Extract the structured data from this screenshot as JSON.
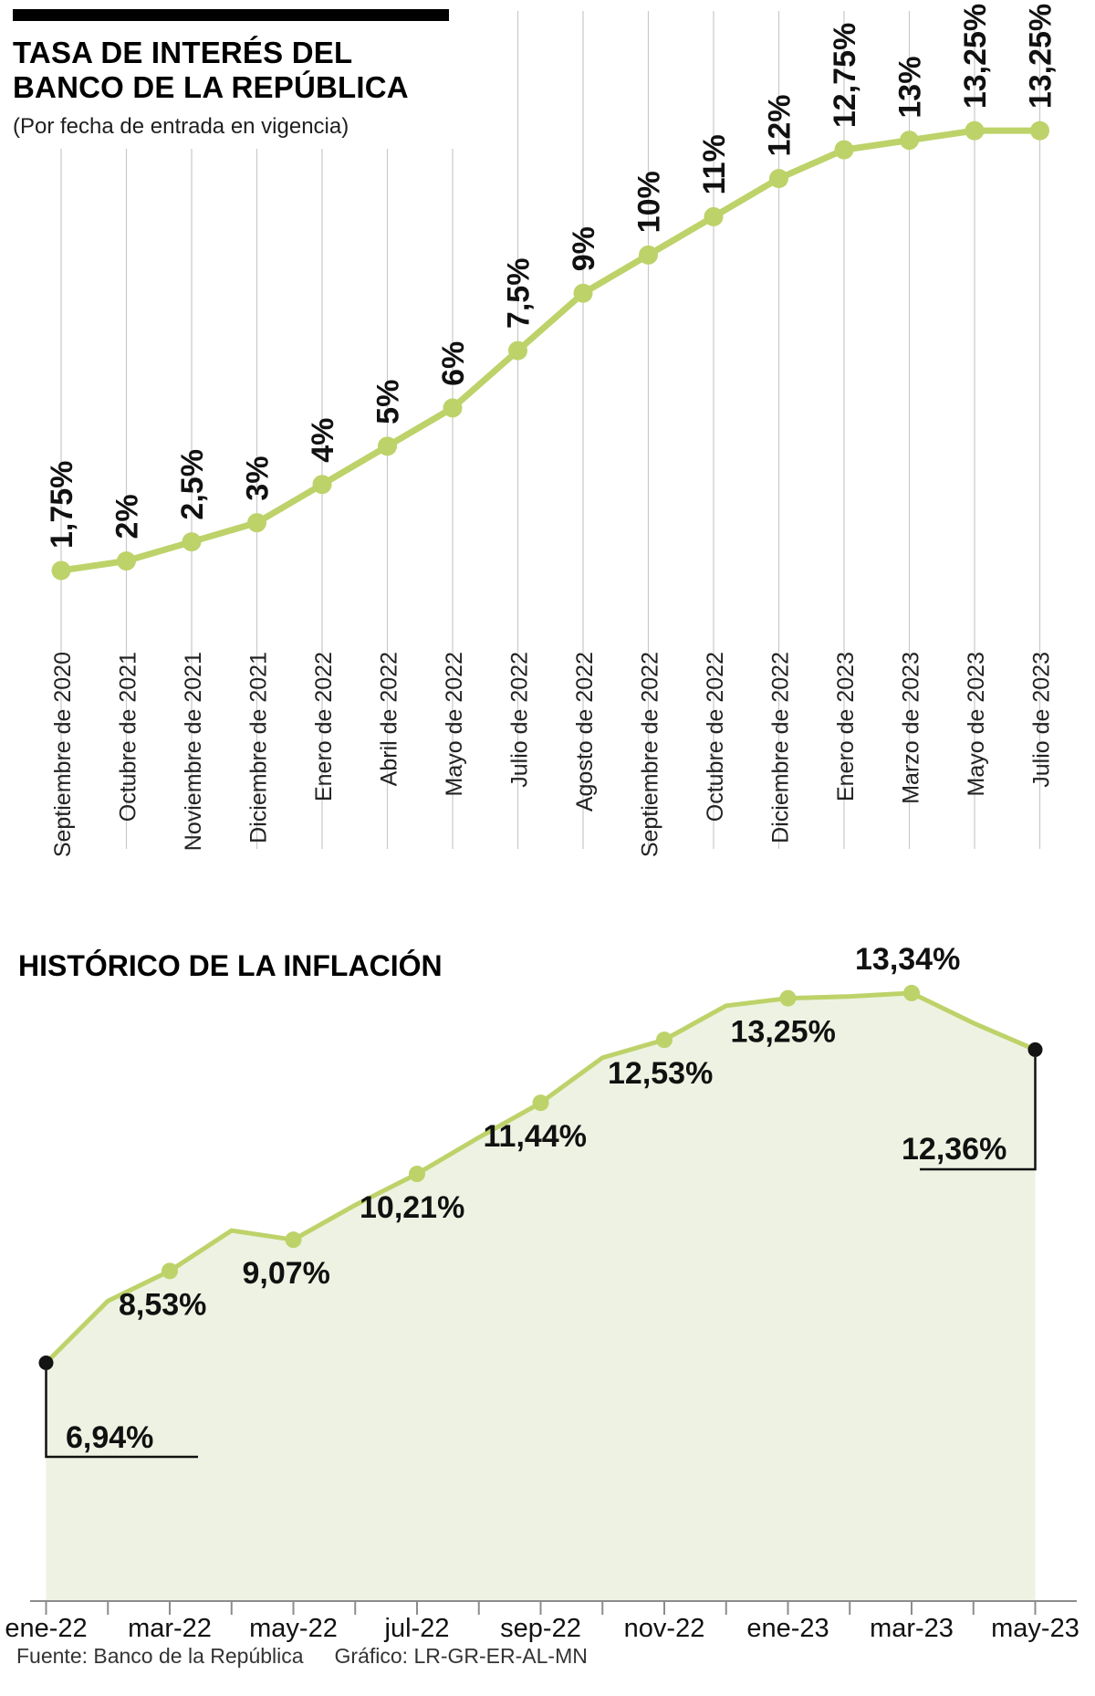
{
  "header": {
    "title_line1": "TASA DE INTERÉS DEL",
    "title_line2": "BANCO DE LA REPÚBLICA",
    "subtitle": "(Por fecha de entrada en vigencia)"
  },
  "inflation_section": {
    "title": "HISTÓRICO DE LA INFLACIÓN"
  },
  "footer": {
    "source": "Fuente: Banco de la República",
    "credit": "Gráfico: LR-GR-ER-AL-MN"
  },
  "colors": {
    "line_green": "#bdd269",
    "area_fill": "#eef2e2",
    "marker_black": "#141414",
    "grid": "#c9c9c9",
    "axis": "#8c8c8c",
    "text": "#111111"
  },
  "chart_data": [
    {
      "type": "line",
      "title": "TASA DE INTERÉS DEL BANCO DE LA REPÚBLICA",
      "subtitle": "(Por fecha de entrada en vigencia)",
      "unit": "%",
      "grid": "vertical-only",
      "legend": "none",
      "ylim": [
        1.75,
        13.25
      ],
      "categories": [
        "Septiembre de 2020",
        "Octubre de 2021",
        "Noviembre de 2021",
        "Diciembre de 2021",
        "Enero de 2022",
        "Abril de 2022",
        "Mayo de 2022",
        "Julio de 2022",
        "Agosto de 2022",
        "Septiembre de 2022",
        "Octubre de 2022",
        "Diciembre de 2022",
        "Enero de 2023",
        "Marzo de 2023",
        "Mayo de 2023",
        "Julio de 2023"
      ],
      "values": [
        1.75,
        2,
        2.5,
        3,
        4,
        5,
        6,
        7.5,
        9,
        10,
        11,
        12,
        12.75,
        13,
        13.25,
        13.25
      ],
      "point_labels": [
        "1,75%",
        "2%",
        "2,5%",
        "3%",
        "4%",
        "5%",
        "6%",
        "7,5%",
        "9%",
        "10%",
        "11%",
        "12%",
        "12,75%",
        "13%",
        "13,25%",
        "13,25%"
      ]
    },
    {
      "type": "area",
      "title": "HISTÓRICO DE LA INFLACIÓN",
      "unit": "%",
      "legend": "none",
      "ylim": [
        6.5,
        13.6
      ],
      "x_tick_labels": [
        "ene-22",
        "mar-22",
        "may-22",
        "jul-22",
        "sep-22",
        "nov-22",
        "ene-23",
        "mar-23",
        "may-23"
      ],
      "points": [
        {
          "month": "ene-22",
          "value": 6.94,
          "label": "6,94%",
          "marker": "black",
          "callout": true
        },
        {
          "month": "feb-22",
          "value": 8.01
        },
        {
          "month": "mar-22",
          "value": 8.53,
          "label": "8,53%",
          "marker": "green"
        },
        {
          "month": "abr-22",
          "value": 9.23
        },
        {
          "month": "may-22",
          "value": 9.07,
          "label": "9,07%",
          "marker": "green"
        },
        {
          "month": "jun-22",
          "value": 9.67
        },
        {
          "month": "jul-22",
          "value": 10.21,
          "label": "10,21%",
          "marker": "green"
        },
        {
          "month": "ago-22",
          "value": 10.84
        },
        {
          "month": "sep-22",
          "value": 11.44,
          "label": "11,44%",
          "marker": "green"
        },
        {
          "month": "oct-22",
          "value": 12.22
        },
        {
          "month": "nov-22",
          "value": 12.53,
          "label": "12,53%",
          "marker": "green"
        },
        {
          "month": "dic-22",
          "value": 13.12
        },
        {
          "month": "ene-23",
          "value": 13.25,
          "label": "13,25%",
          "marker": "green"
        },
        {
          "month": "feb-23",
          "value": 13.28
        },
        {
          "month": "mar-23",
          "value": 13.34,
          "label": "13,34%",
          "marker": "green"
        },
        {
          "month": "abr-23",
          "value": 12.82
        },
        {
          "month": "may-23",
          "value": 12.36,
          "label": "12,36%",
          "marker": "black",
          "callout": true
        }
      ]
    }
  ]
}
